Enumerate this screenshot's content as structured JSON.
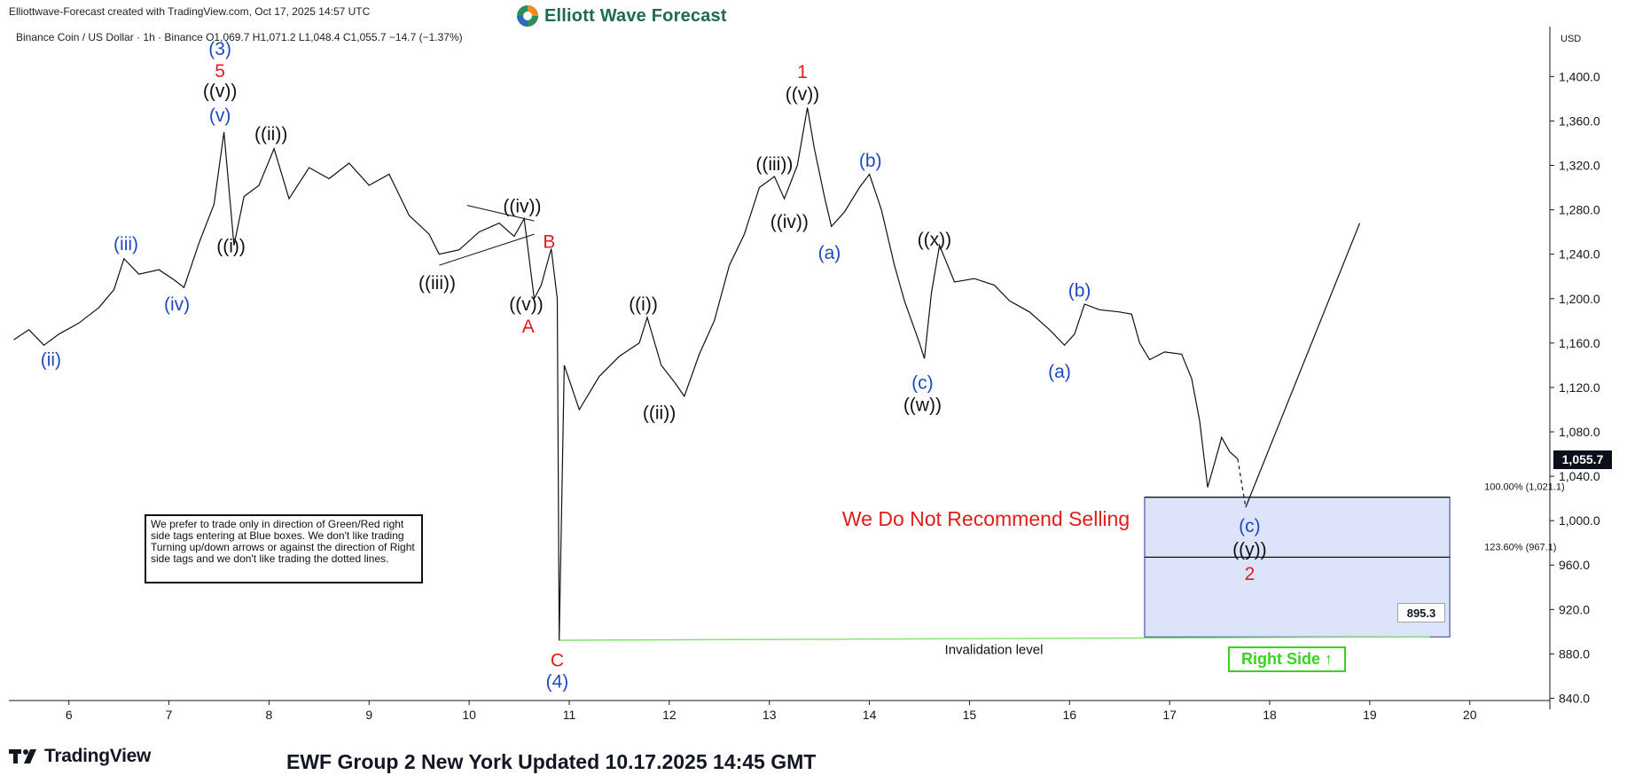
{
  "header": {
    "credit": "Elliottwave-Forecast created with TradingView.com, Oct 17, 2025 14:57 UTC",
    "brand": "Elliott Wave Forecast",
    "symbol_info": "Binance Coin / US Dollar · 1h · Binance  O1,069.7  H1,071.2  L1,048.4  C1,055.7  −14.7 (−1.37%)"
  },
  "footer": {
    "logo_text": "TradingView",
    "title": "EWF Group 2 New York Updated 10.17.2025 14:45 GMT"
  },
  "disclaimer": "We prefer to trade only in direction of Green/Red right side tags entering at Blue boxes. We don't like trading Turning up/down arrows or against the direction of Right side tags and we don't like trading the dotted lines.",
  "colors": {
    "blue_wave": "#1f49c3",
    "red_wave": "#e01c1c",
    "black_wave": "#111111",
    "blue_box": "#dde3f9",
    "green": "#37d31e",
    "invalidation": "#7fe36a"
  },
  "chart_data": {
    "type": "line",
    "title": "Binance Coin / US Dollar · 1h · Binance",
    "currency": "USD",
    "y_ticks": [
      "1,400.0",
      "1,360.0",
      "1,320.0",
      "1,280.0",
      "1,240.0",
      "1,200.0",
      "1,160.0",
      "1,120.0",
      "1,080.0",
      "1,040.0",
      "1,000.0",
      "960.0",
      "920.0",
      "880.0",
      "840.0"
    ],
    "y_tick_values": [
      1400,
      1360,
      1320,
      1280,
      1240,
      1200,
      1160,
      1120,
      1080,
      1040,
      1000,
      960,
      920,
      880,
      840
    ],
    "ylim": [
      838,
      1445
    ],
    "x_ticks": [
      6,
      7,
      8,
      9,
      10,
      11,
      12,
      13,
      14,
      15,
      16,
      17,
      18,
      19,
      20
    ],
    "xlim": [
      5.4,
      20.8
    ],
    "price_path": [
      [
        5.45,
        1163
      ],
      [
        5.6,
        1172
      ],
      [
        5.75,
        1158
      ],
      [
        5.9,
        1168
      ],
      [
        6.1,
        1178
      ],
      [
        6.3,
        1192
      ],
      [
        6.45,
        1208
      ],
      [
        6.55,
        1236
      ],
      [
        6.7,
        1222
      ],
      [
        6.9,
        1226
      ],
      [
        7.05,
        1217
      ],
      [
        7.15,
        1210
      ],
      [
        7.3,
        1250
      ],
      [
        7.45,
        1285
      ],
      [
        7.55,
        1350
      ],
      [
        7.65,
        1248
      ],
      [
        7.75,
        1292
      ],
      [
        7.9,
        1302
      ],
      [
        8.05,
        1335
      ],
      [
        8.2,
        1290
      ],
      [
        8.4,
        1318
      ],
      [
        8.6,
        1308
      ],
      [
        8.8,
        1322
      ],
      [
        9.0,
        1302
      ],
      [
        9.2,
        1312
      ],
      [
        9.4,
        1275
      ],
      [
        9.6,
        1258
      ],
      [
        9.7,
        1240
      ],
      [
        9.9,
        1244
      ],
      [
        10.1,
        1260
      ],
      [
        10.3,
        1268
      ],
      [
        10.45,
        1256
      ],
      [
        10.55,
        1272
      ],
      [
        10.65,
        1200
      ],
      [
        10.72,
        1212
      ],
      [
        10.82,
        1245
      ],
      [
        10.88,
        1200
      ],
      [
        10.9,
        892
      ],
      [
        10.95,
        1140
      ],
      [
        11.1,
        1100
      ],
      [
        11.3,
        1130
      ],
      [
        11.5,
        1148
      ],
      [
        11.7,
        1160
      ],
      [
        11.78,
        1183
      ],
      [
        11.92,
        1140
      ],
      [
        12.05,
        1125
      ],
      [
        12.15,
        1112
      ],
      [
        12.3,
        1150
      ],
      [
        12.45,
        1180
      ],
      [
        12.6,
        1230
      ],
      [
        12.75,
        1258
      ],
      [
        12.9,
        1300
      ],
      [
        13.05,
        1310
      ],
      [
        13.15,
        1290
      ],
      [
        13.28,
        1320
      ],
      [
        13.38,
        1372
      ],
      [
        13.45,
        1335
      ],
      [
        13.55,
        1292
      ],
      [
        13.62,
        1265
      ],
      [
        13.75,
        1278
      ],
      [
        13.9,
        1300
      ],
      [
        14.0,
        1312
      ],
      [
        14.12,
        1280
      ],
      [
        14.25,
        1230
      ],
      [
        14.35,
        1198
      ],
      [
        14.5,
        1160
      ],
      [
        14.55,
        1146
      ],
      [
        14.62,
        1205
      ],
      [
        14.7,
        1248
      ],
      [
        14.85,
        1215
      ],
      [
        15.05,
        1218
      ],
      [
        15.25,
        1212
      ],
      [
        15.4,
        1198
      ],
      [
        15.6,
        1188
      ],
      [
        15.8,
        1172
      ],
      [
        15.95,
        1158
      ],
      [
        16.05,
        1168
      ],
      [
        16.15,
        1195
      ],
      [
        16.3,
        1190
      ],
      [
        16.5,
        1188
      ],
      [
        16.62,
        1186
      ],
      [
        16.7,
        1160
      ],
      [
        16.8,
        1145
      ],
      [
        16.95,
        1152
      ],
      [
        17.12,
        1150
      ],
      [
        17.22,
        1128
      ],
      [
        17.3,
        1090
      ],
      [
        17.38,
        1030
      ],
      [
        17.45,
        1052
      ],
      [
        17.52,
        1075
      ],
      [
        17.6,
        1062
      ],
      [
        17.68,
        1055.7
      ]
    ],
    "projected_path": [
      [
        17.68,
        1055.7
      ],
      [
        17.76,
        1012
      ],
      [
        18.9,
        1268
      ]
    ],
    "triangle_lines": [
      [
        [
          9.7,
          1230
        ],
        [
          10.65,
          1258
        ]
      ],
      [
        [
          9.98,
          1284
        ],
        [
          10.65,
          1270
        ]
      ]
    ],
    "fib_levels": [
      {
        "label": "100.00% (1,021.1)",
        "value": 1021.1
      },
      {
        "label": "123.60% (967.1)",
        "value": 967.1
      }
    ],
    "blue_box": {
      "x_from": 16.75,
      "x_to": 19.8,
      "top": 1021.1,
      "bottom": 895.3
    },
    "invalidation": {
      "label": "Invalidation level",
      "value": 895.3,
      "x_from": 10.9,
      "x_to": 19.6
    },
    "last_price": "1,055.7",
    "invalidation_value_label": "895.3",
    "annotation_text": "We Do Not Recommend Selling",
    "right_side_label": "Right Side",
    "wave_labels": [
      {
        "text": "(ii)",
        "x": 5.82,
        "y": 1146,
        "color": "blue"
      },
      {
        "text": "(iii)",
        "x": 6.57,
        "y": 1250,
        "color": "blue"
      },
      {
        "text": "(iv)",
        "x": 7.08,
        "y": 1196,
        "color": "blue"
      },
      {
        "text": "(3)",
        "x": 7.51,
        "y": 1426,
        "color": "blue"
      },
      {
        "text": "5",
        "x": 7.51,
        "y": 1406,
        "color": "red"
      },
      {
        "text": "((v))",
        "x": 7.51,
        "y": 1388,
        "color": "black"
      },
      {
        "text": "(v)",
        "x": 7.51,
        "y": 1366,
        "color": "blue"
      },
      {
        "text": "((i))",
        "x": 7.62,
        "y": 1248,
        "color": "black"
      },
      {
        "text": "((ii))",
        "x": 8.02,
        "y": 1349,
        "color": "black"
      },
      {
        "text": "((iii))",
        "x": 9.68,
        "y": 1215,
        "color": "black"
      },
      {
        "text": "((iv))",
        "x": 10.53,
        "y": 1284,
        "color": "black"
      },
      {
        "text": "((v))",
        "x": 10.57,
        "y": 1196,
        "color": "black"
      },
      {
        "text": "A",
        "x": 10.59,
        "y": 1176,
        "color": "red"
      },
      {
        "text": "B",
        "x": 10.8,
        "y": 1252,
        "color": "red"
      },
      {
        "text": "C",
        "x": 10.88,
        "y": 875,
        "color": "red"
      },
      {
        "text": "(4)",
        "x": 10.88,
        "y": 856,
        "color": "blue"
      },
      {
        "text": "((i))",
        "x": 11.74,
        "y": 1196,
        "color": "black"
      },
      {
        "text": "((ii))",
        "x": 11.9,
        "y": 1098,
        "color": "black"
      },
      {
        "text": "((iii))",
        "x": 13.05,
        "y": 1322,
        "color": "black"
      },
      {
        "text": "((iv))",
        "x": 13.2,
        "y": 1270,
        "color": "black"
      },
      {
        "text": "1",
        "x": 13.33,
        "y": 1405,
        "color": "red"
      },
      {
        "text": "((v))",
        "x": 13.33,
        "y": 1385,
        "color": "black"
      },
      {
        "text": "(a)",
        "x": 13.6,
        "y": 1242,
        "color": "blue"
      },
      {
        "text": "(b)",
        "x": 14.01,
        "y": 1325,
        "color": "blue"
      },
      {
        "text": "((x))",
        "x": 14.65,
        "y": 1254,
        "color": "black"
      },
      {
        "text": "(c)",
        "x": 14.53,
        "y": 1125,
        "color": "blue"
      },
      {
        "text": "((w))",
        "x": 14.53,
        "y": 1105,
        "color": "black"
      },
      {
        "text": "(a)",
        "x": 15.9,
        "y": 1135,
        "color": "blue"
      },
      {
        "text": "(b)",
        "x": 16.1,
        "y": 1208,
        "color": "blue"
      },
      {
        "text": "(c)",
        "x": 17.8,
        "y": 996,
        "color": "blue"
      },
      {
        "text": "((y))",
        "x": 17.8,
        "y": 975,
        "color": "black"
      },
      {
        "text": "2",
        "x": 17.8,
        "y": 953,
        "color": "red"
      }
    ]
  }
}
